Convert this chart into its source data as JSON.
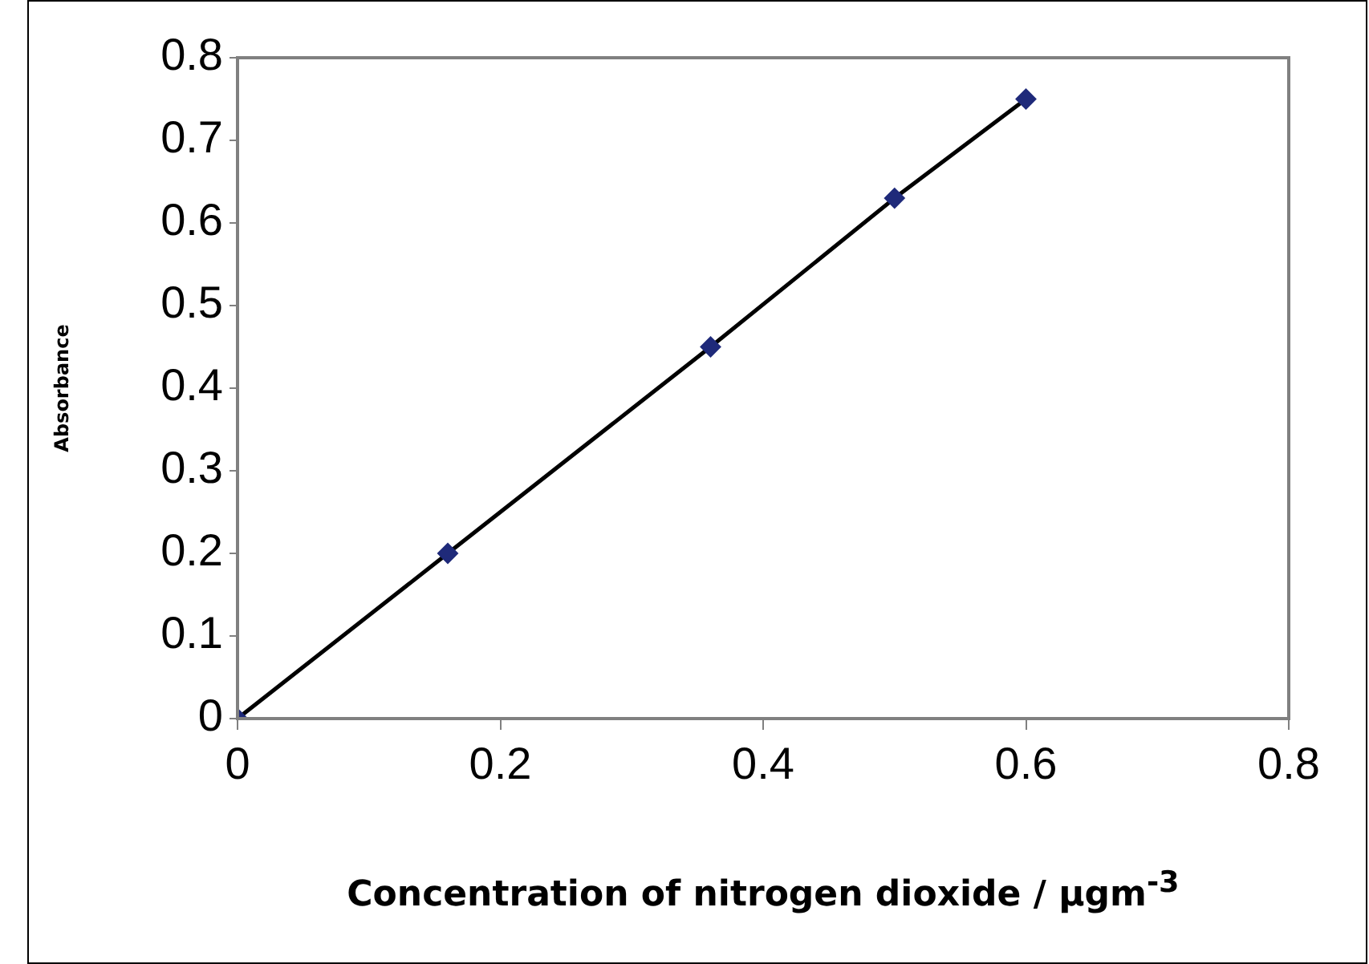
{
  "chart_data": {
    "type": "scatter",
    "xlabel": "Concentration of nitrogen dioxide / µgm$^{-3}$",
    "ylabel": "Absorbance",
    "x": [
      0,
      0.16,
      0.36,
      0.5,
      0.6
    ],
    "series": [
      {
        "color": "#1f2a7a",
        "marker": "diamond",
        "values": [
          0,
          0.2,
          0.45,
          0.63,
          0.75
        ]
      },
      {
        "type": "line",
        "color": "#000000",
        "marker": "none",
        "line_style": "solid",
        "x": [
          0,
          0.16,
          0.36,
          0.5,
          0.6
        ],
        "values": [
          0,
          0.2,
          0.45,
          0.63,
          0.75
        ]
      }
    ],
    "xlim": [
      0,
      0.8
    ],
    "xticks": [
      0,
      0.2,
      0.4,
      0.6,
      0.8
    ],
    "ylim": [
      0,
      0.8
    ],
    "yticks": [
      0,
      0.1,
      0.2,
      0.3,
      0.4,
      0.5,
      0.6,
      0.7,
      0.8
    ],
    "grid": false,
    "legend": false
  }
}
